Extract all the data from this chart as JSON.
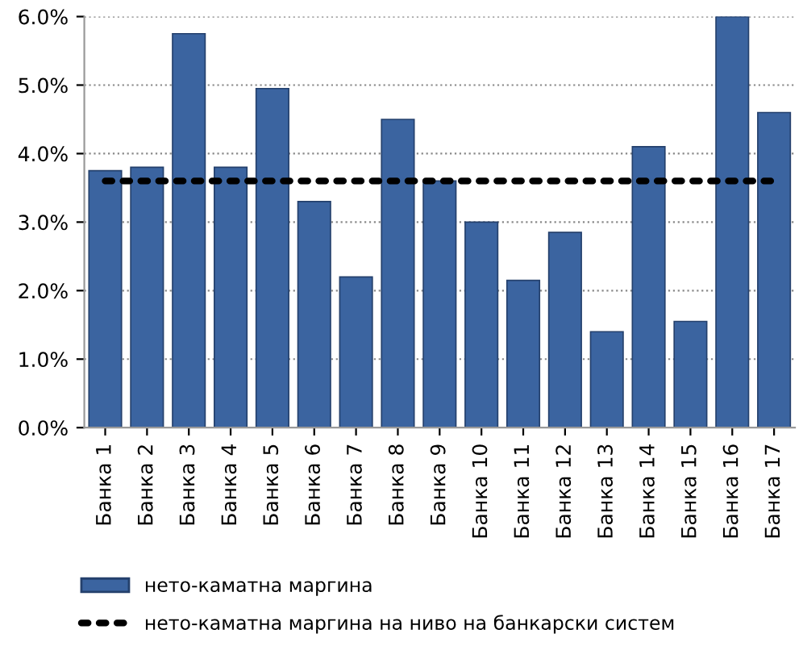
{
  "chart_data": {
    "type": "bar",
    "categories": [
      "Банка 1",
      "Банка 2",
      "Банка 3",
      "Банка 4",
      "Банка 5",
      "Банка 6",
      "Банка 7",
      "Банка 8",
      "Банка 9",
      "Банка 10",
      "Банка 11",
      "Банка 12",
      "Банка 13",
      "Банка 14",
      "Банка 15",
      "Банка 16",
      "Банка 17"
    ],
    "series": [
      {
        "name": "нето-каматна маргина",
        "color": "#3b64a0",
        "values": [
          3.75,
          3.8,
          5.75,
          3.8,
          4.95,
          3.3,
          2.2,
          4.5,
          3.6,
          3.0,
          2.15,
          2.85,
          1.4,
          4.1,
          1.55,
          6.0,
          4.6
        ]
      },
      {
        "name": "нето-каматна маргина на ниво на банкарски систем",
        "type": "line",
        "line_style": "dotted",
        "color": "#000000",
        "values": [
          3.6,
          3.6,
          3.6,
          3.6,
          3.6,
          3.6,
          3.6,
          3.6,
          3.6,
          3.6,
          3.6,
          3.6,
          3.6,
          3.6,
          3.6,
          3.6,
          3.6
        ]
      }
    ],
    "ylim": [
      0,
      6
    ],
    "yticks": [
      {
        "value": 0,
        "label": "0.0%"
      },
      {
        "value": 1,
        "label": "1.0%"
      },
      {
        "value": 2,
        "label": "2.0%"
      },
      {
        "value": 3,
        "label": "3.0%"
      },
      {
        "value": 4,
        "label": "4.0%"
      },
      {
        "value": 5,
        "label": "5.0%"
      },
      {
        "value": 6,
        "label": "6.0%"
      }
    ],
    "grid": "y",
    "legend": "bottom"
  }
}
